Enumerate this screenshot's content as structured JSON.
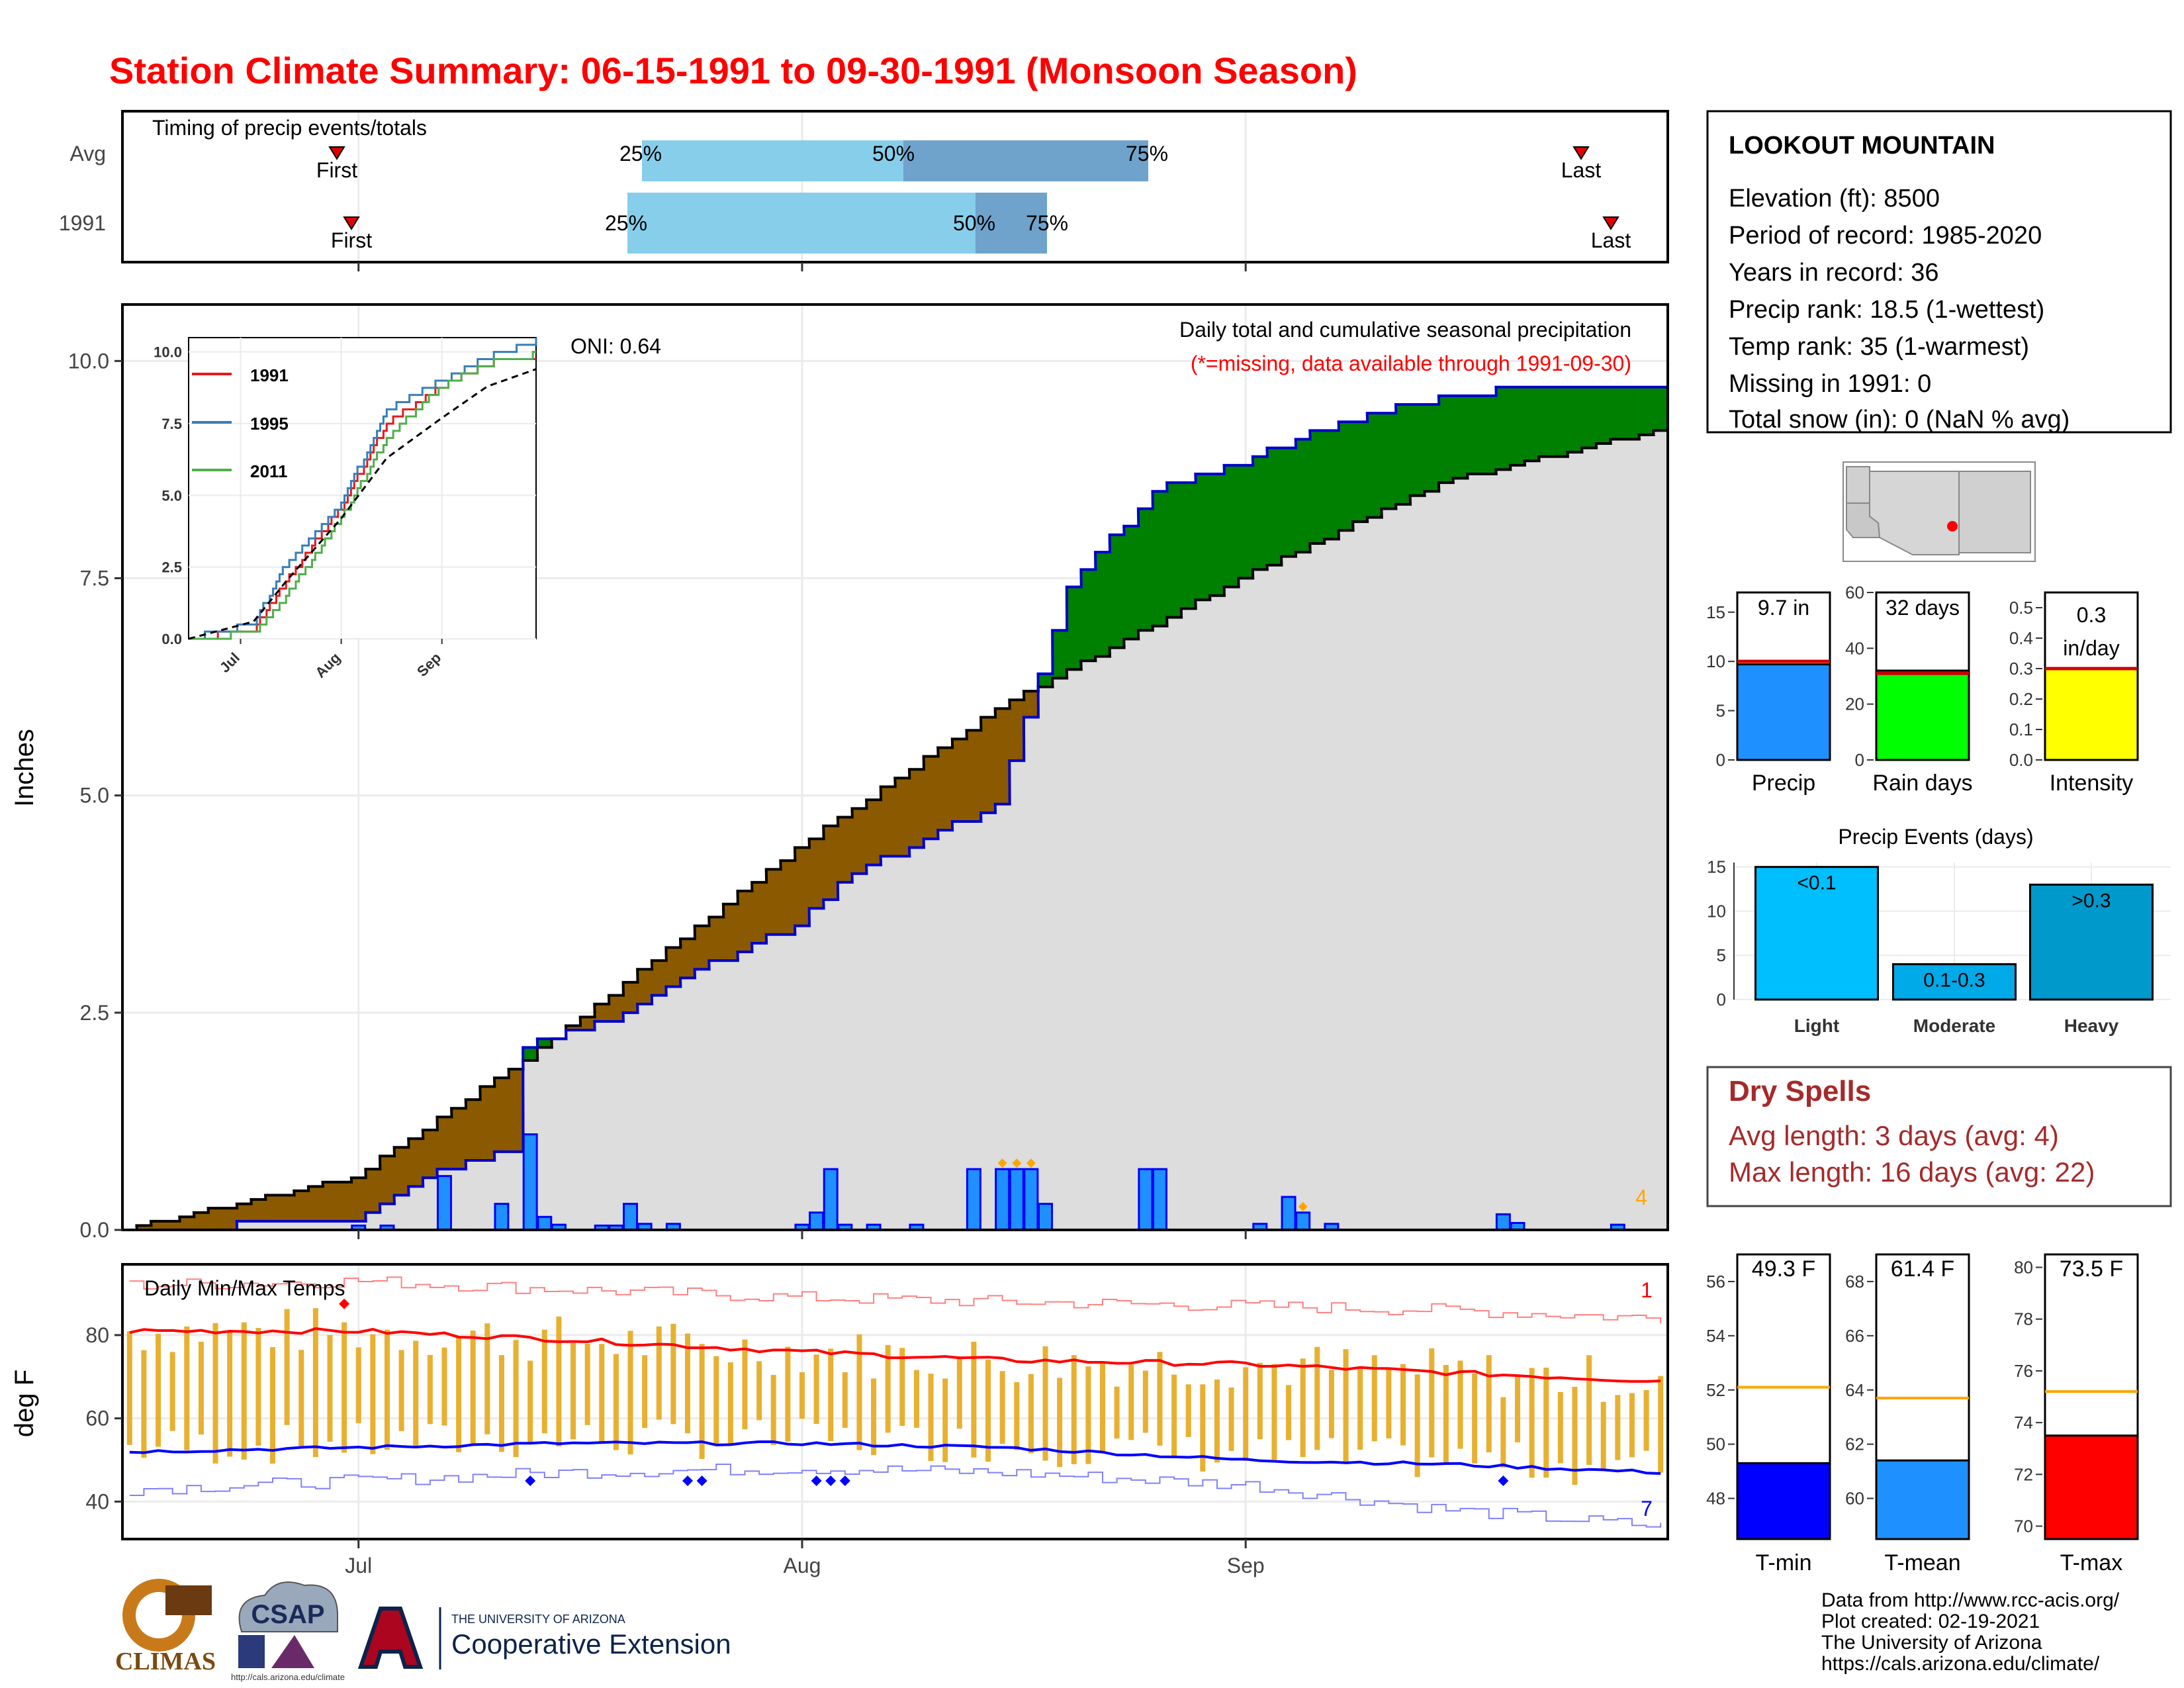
{
  "title": "Station Climate Summary: 06-15-1991 to 09-30-1991 (Monsoon Season)",
  "colors": {
    "title": "#ff0000",
    "q_light": "#87ceeb",
    "q_dark": "#6fa3cb",
    "above_fill": "#008000",
    "below_fill": "#8b5a00",
    "bg_fill": "#dddddd",
    "precip_bar": "#1e90ff",
    "precip_edge": "#0000ff",
    "tmax_line": "#ff0000",
    "tmin_line": "#0000ff",
    "temp_bar": "#e8b030",
    "dry": "#a52a2a",
    "rain_days": "#00ff00",
    "intensity": "#ffff00",
    "events": "#00bfff",
    "tmean": "#1e90ff"
  },
  "timing": {
    "title": "Timing of precip events/totals",
    "rows": [
      {
        "label": "Avg",
        "first": "First",
        "last": "Last",
        "q25": "25%",
        "q50": "50%",
        "q75": "75%"
      },
      {
        "label": "1991",
        "first": "First",
        "last": "Last",
        "q25": "25%",
        "q50": "50%",
        "q75": "75%"
      }
    ]
  },
  "precip_panel": {
    "ylabel": "Inches",
    "oni": "ONI: 0.64",
    "subtitle": "Daily total and cumulative seasonal precipitation",
    "note": "(*=missing, data available through 1991-09-30)",
    "missing_count": "4",
    "yticks": [
      "0.0",
      "2.5",
      "5.0",
      "7.5",
      "10.0"
    ],
    "xticks": [
      "Jul",
      "Aug",
      "Sep"
    ]
  },
  "inset": {
    "yticks": [
      "0.0",
      "2.5",
      "5.0",
      "7.5",
      "10.0"
    ],
    "xticks": [
      "Jul",
      "Aug",
      "Sep"
    ],
    "legend": [
      "1991",
      "1995",
      "2011"
    ]
  },
  "temp_panel": {
    "title": "Daily Min/Max Temps",
    "ylabel": "deg F",
    "yticks": [
      "40",
      "60",
      "80"
    ],
    "count_max": "1",
    "count_min": "7"
  },
  "station": {
    "name": "LOOKOUT MOUNTAIN",
    "lines": [
      "Elevation (ft): 8500",
      "Period of record: 1985-2020",
      "Years in record: 36",
      "Precip rank: 18.5 (1-wettest)",
      "Temp rank: 35 (1-warmest)",
      "Missing in 1991: 0",
      "Total snow (in): 0 (NaN % avg)"
    ]
  },
  "summary_bars": [
    {
      "label": "Precip",
      "value_text": "9.7 in",
      "value": 9.7,
      "avg": 10,
      "ymax": 17,
      "ticks": [
        "0",
        "5",
        "10",
        "15"
      ]
    },
    {
      "label": "Rain days",
      "value_text": "32 days",
      "value": 32,
      "avg": 31,
      "ymax": 60,
      "ticks": [
        "0",
        "20",
        "40",
        "60"
      ]
    },
    {
      "label": "Intensity",
      "value_text_1": "0.3",
      "value_text_2": "in/day",
      "value": 0.3,
      "avg": 0.3,
      "ymax": 0.55,
      "ticks": [
        "0.0",
        "0.1",
        "0.2",
        "0.3",
        "0.4",
        "0.5"
      ]
    }
  ],
  "events": {
    "title": "Precip Events (days)",
    "ticks": [
      "0",
      "5",
      "10",
      "15"
    ],
    "bars": [
      {
        "label": "Light",
        "text": "<0.1",
        "value": 15
      },
      {
        "label": "Moderate",
        "text": "0.1-0.3",
        "value": 4
      },
      {
        "label": "Heavy",
        "text": ">0.3",
        "value": 13
      }
    ]
  },
  "dry_spells": {
    "title": "Dry Spells",
    "avg": "Avg length: 3 days (avg: 4)",
    "max": "Max length: 16 days (avg: 22)"
  },
  "temp_bars": [
    {
      "label": "T-min",
      "value_text": "49.3 F",
      "value": 49.3,
      "avg": 52.1,
      "ymin": 46.5,
      "ymax": 57,
      "ticks": [
        "48",
        "50",
        "52",
        "54",
        "56"
      ]
    },
    {
      "label": "T-mean",
      "value_text": "61.4 F",
      "value": 61.4,
      "avg": 63.7,
      "ymin": 58.5,
      "ymax": 69,
      "ticks": [
        "60",
        "62",
        "64",
        "66",
        "68"
      ]
    },
    {
      "label": "T-max",
      "value_text": "73.5 F",
      "value": 73.5,
      "avg": 75.2,
      "ymin": 69.5,
      "ymax": 80.5,
      "ticks": [
        "70",
        "72",
        "74",
        "76",
        "78",
        "80"
      ]
    }
  ],
  "credits": {
    "lines": [
      "Data from http://www.rcc-acis.org/",
      "Plot created: 02-19-2021",
      "The University of Arizona",
      "https://cals.arizona.edu/climate/"
    ],
    "logo_climas": "CLIMAS",
    "logo_csap": "CSAP",
    "logo_csap_url": "http://cals.arizona.edu/climate",
    "logo_ua_small": "THE UNIVERSITY OF ARIZONA",
    "logo_ua_big": "Cooperative Extension"
  },
  "chart_data": [
    {
      "type": "area",
      "title": "Daily total and cumulative seasonal precipitation",
      "ylabel": "Inches",
      "ylim": [
        0,
        10.5
      ],
      "x_range": [
        "1991-06-15",
        "1991-09-30"
      ],
      "series": [
        {
          "name": "1991",
          "x": [
            "06-15",
            "07-01",
            "07-07",
            "07-12",
            "07-13",
            "07-20",
            "07-25",
            "08-01",
            "08-05",
            "08-15",
            "08-20",
            "08-26",
            "09-02",
            "09-10",
            "09-20",
            "09-30"
          ],
          "values": [
            0.0,
            0.1,
            0.7,
            0.9,
            2.1,
            2.5,
            3.0,
            3.5,
            4.1,
            4.9,
            7.4,
            8.5,
            8.9,
            9.4,
            9.7,
            9.7
          ]
        },
        {
          "name": "Avg",
          "x": [
            "06-15",
            "07-01",
            "07-15",
            "08-01",
            "08-15",
            "09-01",
            "09-15",
            "09-30"
          ],
          "values": [
            0.0,
            0.6,
            2.2,
            4.4,
            6.0,
            7.5,
            8.6,
            9.2
          ]
        }
      ],
      "daily_precip": [
        {
          "x": "07-01",
          "v": 0.05
        },
        {
          "x": "07-03",
          "v": 0.05
        },
        {
          "x": "07-07",
          "v": 0.62
        },
        {
          "x": "07-11",
          "v": 0.3
        },
        {
          "x": "07-13",
          "v": 1.1
        },
        {
          "x": "07-14",
          "v": 0.15
        },
        {
          "x": "07-15",
          "v": 0.06
        },
        {
          "x": "07-18",
          "v": 0.05
        },
        {
          "x": "07-19",
          "v": 0.05
        },
        {
          "x": "07-20",
          "v": 0.3
        },
        {
          "x": "07-21",
          "v": 0.07
        },
        {
          "x": "07-23",
          "v": 0.07
        },
        {
          "x": "08-01",
          "v": 0.06
        },
        {
          "x": "08-02",
          "v": 0.2
        },
        {
          "x": "08-03",
          "v": 0.7
        },
        {
          "x": "08-04",
          "v": 0.06
        },
        {
          "x": "08-06",
          "v": 0.06
        },
        {
          "x": "08-09",
          "v": 0.06
        },
        {
          "x": "08-13",
          "v": 0.7
        },
        {
          "x": "08-15",
          "v": 0.7
        },
        {
          "x": "08-16",
          "v": 0.7
        },
        {
          "x": "08-17",
          "v": 0.7
        },
        {
          "x": "08-18",
          "v": 0.3
        },
        {
          "x": "08-25",
          "v": 0.7
        },
        {
          "x": "08-26",
          "v": 0.7
        },
        {
          "x": "09-02",
          "v": 0.07
        },
        {
          "x": "09-04",
          "v": 0.38
        },
        {
          "x": "09-05",
          "v": 0.2
        },
        {
          "x": "09-07",
          "v": 0.07
        },
        {
          "x": "09-19",
          "v": 0.18
        },
        {
          "x": "09-20",
          "v": 0.08
        },
        {
          "x": "09-27",
          "v": 0.06
        }
      ]
    },
    {
      "type": "line",
      "title": "",
      "series": [
        {
          "name": "1991",
          "x": [
            "06-15",
            "07-05",
            "07-15",
            "08-01",
            "08-15",
            "09-01",
            "09-15",
            "09-30"
          ],
          "values": [
            0,
            0.3,
            2.0,
            4.6,
            7.5,
            8.8,
            9.6,
            9.8
          ]
        },
        {
          "name": "1995",
          "x": [
            "06-15",
            "07-05",
            "07-15",
            "08-01",
            "08-15",
            "09-01",
            "09-15",
            "09-30"
          ],
          "values": [
            0,
            0.5,
            2.6,
            4.7,
            8.0,
            9.0,
            9.8,
            10.4
          ]
        },
        {
          "name": "2011",
          "x": [
            "06-15",
            "07-05",
            "07-15",
            "08-01",
            "08-15",
            "09-01",
            "09-15",
            "09-30"
          ],
          "values": [
            0,
            0.2,
            1.5,
            4.2,
            7.0,
            8.8,
            9.6,
            9.9
          ]
        },
        {
          "name": "Avg",
          "x": [
            "06-15",
            "07-05",
            "07-15",
            "08-01",
            "08-15",
            "09-01",
            "09-15",
            "09-30"
          ],
          "values": [
            0,
            0.6,
            2.0,
            4.2,
            6.3,
            7.7,
            8.8,
            9.4
          ]
        }
      ],
      "ylim": [
        0,
        10.5
      ],
      "xticks": [
        "Jul",
        "Aug",
        "Sep"
      ]
    },
    {
      "type": "line",
      "title": "Daily Min/Max Temps",
      "ylabel": "deg F",
      "ylim": [
        31,
        97
      ],
      "xticks": [
        "Jul",
        "Aug",
        "Sep"
      ],
      "series": [
        {
          "name": "tmax_avg",
          "x": [
            "06-15",
            "07-01",
            "07-15",
            "08-01",
            "08-15",
            "09-01",
            "09-15",
            "09-30"
          ],
          "values": [
            81,
            81,
            79,
            76,
            74,
            73,
            71,
            69
          ]
        },
        {
          "name": "tmin_avg",
          "x": [
            "06-15",
            "07-01",
            "07-15",
            "08-01",
            "08-15",
            "09-01",
            "09-15",
            "09-30"
          ],
          "values": [
            52,
            53,
            54,
            54,
            53,
            50,
            49,
            47
          ]
        },
        {
          "name": "tmax_record",
          "x": [
            "06-15",
            "07-01",
            "07-15",
            "08-01",
            "08-15",
            "09-01",
            "09-15",
            "09-30"
          ],
          "values": [
            92,
            93,
            91,
            89,
            88,
            87,
            86,
            84
          ]
        },
        {
          "name": "tmin_record",
          "x": [
            "06-15",
            "07-01",
            "07-15",
            "08-01",
            "08-15",
            "09-01",
            "09-15",
            "09-30"
          ],
          "values": [
            43,
            45,
            47,
            48,
            47,
            44,
            38,
            34
          ]
        }
      ]
    },
    {
      "type": "bar",
      "title": "",
      "categories": [
        "Precip",
        "Rain days",
        "Intensity"
      ],
      "values": [
        9.7,
        32,
        0.3
      ]
    },
    {
      "type": "bar",
      "title": "Precip Events (days)",
      "categories": [
        "Light",
        "Moderate",
        "Heavy"
      ],
      "values": [
        15,
        4,
        13
      ]
    },
    {
      "type": "bar",
      "title": "",
      "categories": [
        "T-min",
        "T-mean",
        "T-max"
      ],
      "values": [
        49.3,
        61.4,
        73.5
      ]
    }
  ]
}
